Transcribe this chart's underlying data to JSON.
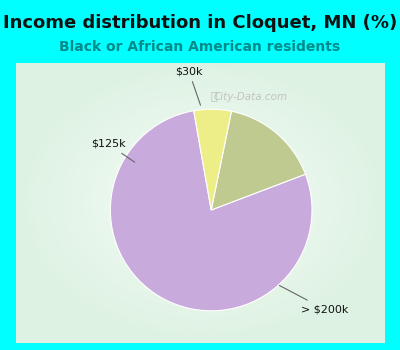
{
  "title": "Income distribution in Cloquet, MN (%)",
  "subtitle": "Black or African American residents",
  "slices": [
    78.0,
    16.0,
    6.0
  ],
  "labels": [
    "> $200k",
    "$125k",
    "$30k"
  ],
  "colors": [
    "#C8AADC",
    "#BECA90",
    "#EEEE88"
  ],
  "outer_bg": "#00FFFF",
  "inner_bg": "#D5EAD8",
  "watermark": "City-Data.com",
  "title_color": "#111111",
  "subtitle_color": "#008B8B",
  "title_fontsize": 13,
  "subtitle_fontsize": 10,
  "startangle": 100
}
